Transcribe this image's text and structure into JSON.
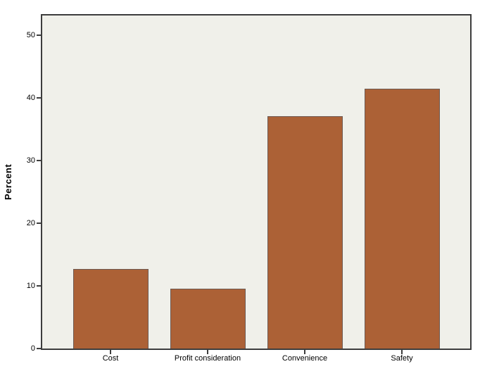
{
  "chart_data": {
    "type": "bar",
    "title": "",
    "categories": [
      "Cost",
      "Profit consideration",
      "Convenience",
      "Safety"
    ],
    "values": [
      12.7,
      9.5,
      37.1,
      41.4
    ],
    "xlabel": "",
    "ylabel": "Percent",
    "yticks": [
      0,
      10,
      20,
      30,
      40,
      50
    ],
    "ylim": [
      0,
      53.1
    ],
    "grid": false,
    "legend": false,
    "bar_color": "#ac6136",
    "bar_border_color": "#6e5a52",
    "plot_background": "#f0f0ea",
    "frame_color": "#3d3d3d",
    "text_color": "#000000",
    "page_background": "#ffffff"
  }
}
